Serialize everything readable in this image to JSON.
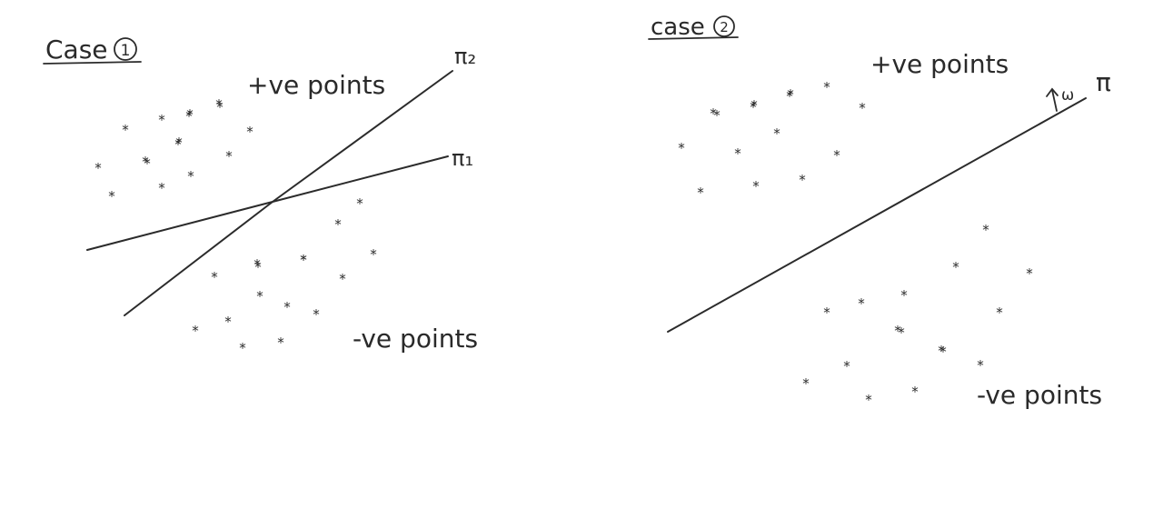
{
  "case1": {
    "title": "Case",
    "number": "1",
    "pos_label": "+ve points",
    "neg_label": "-ve points",
    "plane2_label": "π₂",
    "plane1_label": "π₁",
    "positive_point_count": 16,
    "negative_point_count": 16
  },
  "case2": {
    "title": "case",
    "number": "2",
    "pos_label": "+ve points",
    "neg_label": "-ve points",
    "plane_label": "π",
    "normal_label": "ω",
    "positive_point_count": 15,
    "negative_point_count": 16
  },
  "colors": {
    "ink": "#2b2b2b",
    "paper": "#ffffff"
  }
}
